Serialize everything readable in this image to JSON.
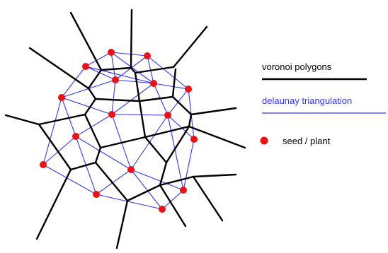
{
  "legend": {
    "voronoi_label": "voronoi polygons",
    "delaunay_label": "delaunay triangulation",
    "seed_label": "seed / plant"
  },
  "colors": {
    "voronoi": "#000000",
    "delaunay": "#3333ff",
    "seed": "#ee1111",
    "background": "#ffffff"
  }
}
